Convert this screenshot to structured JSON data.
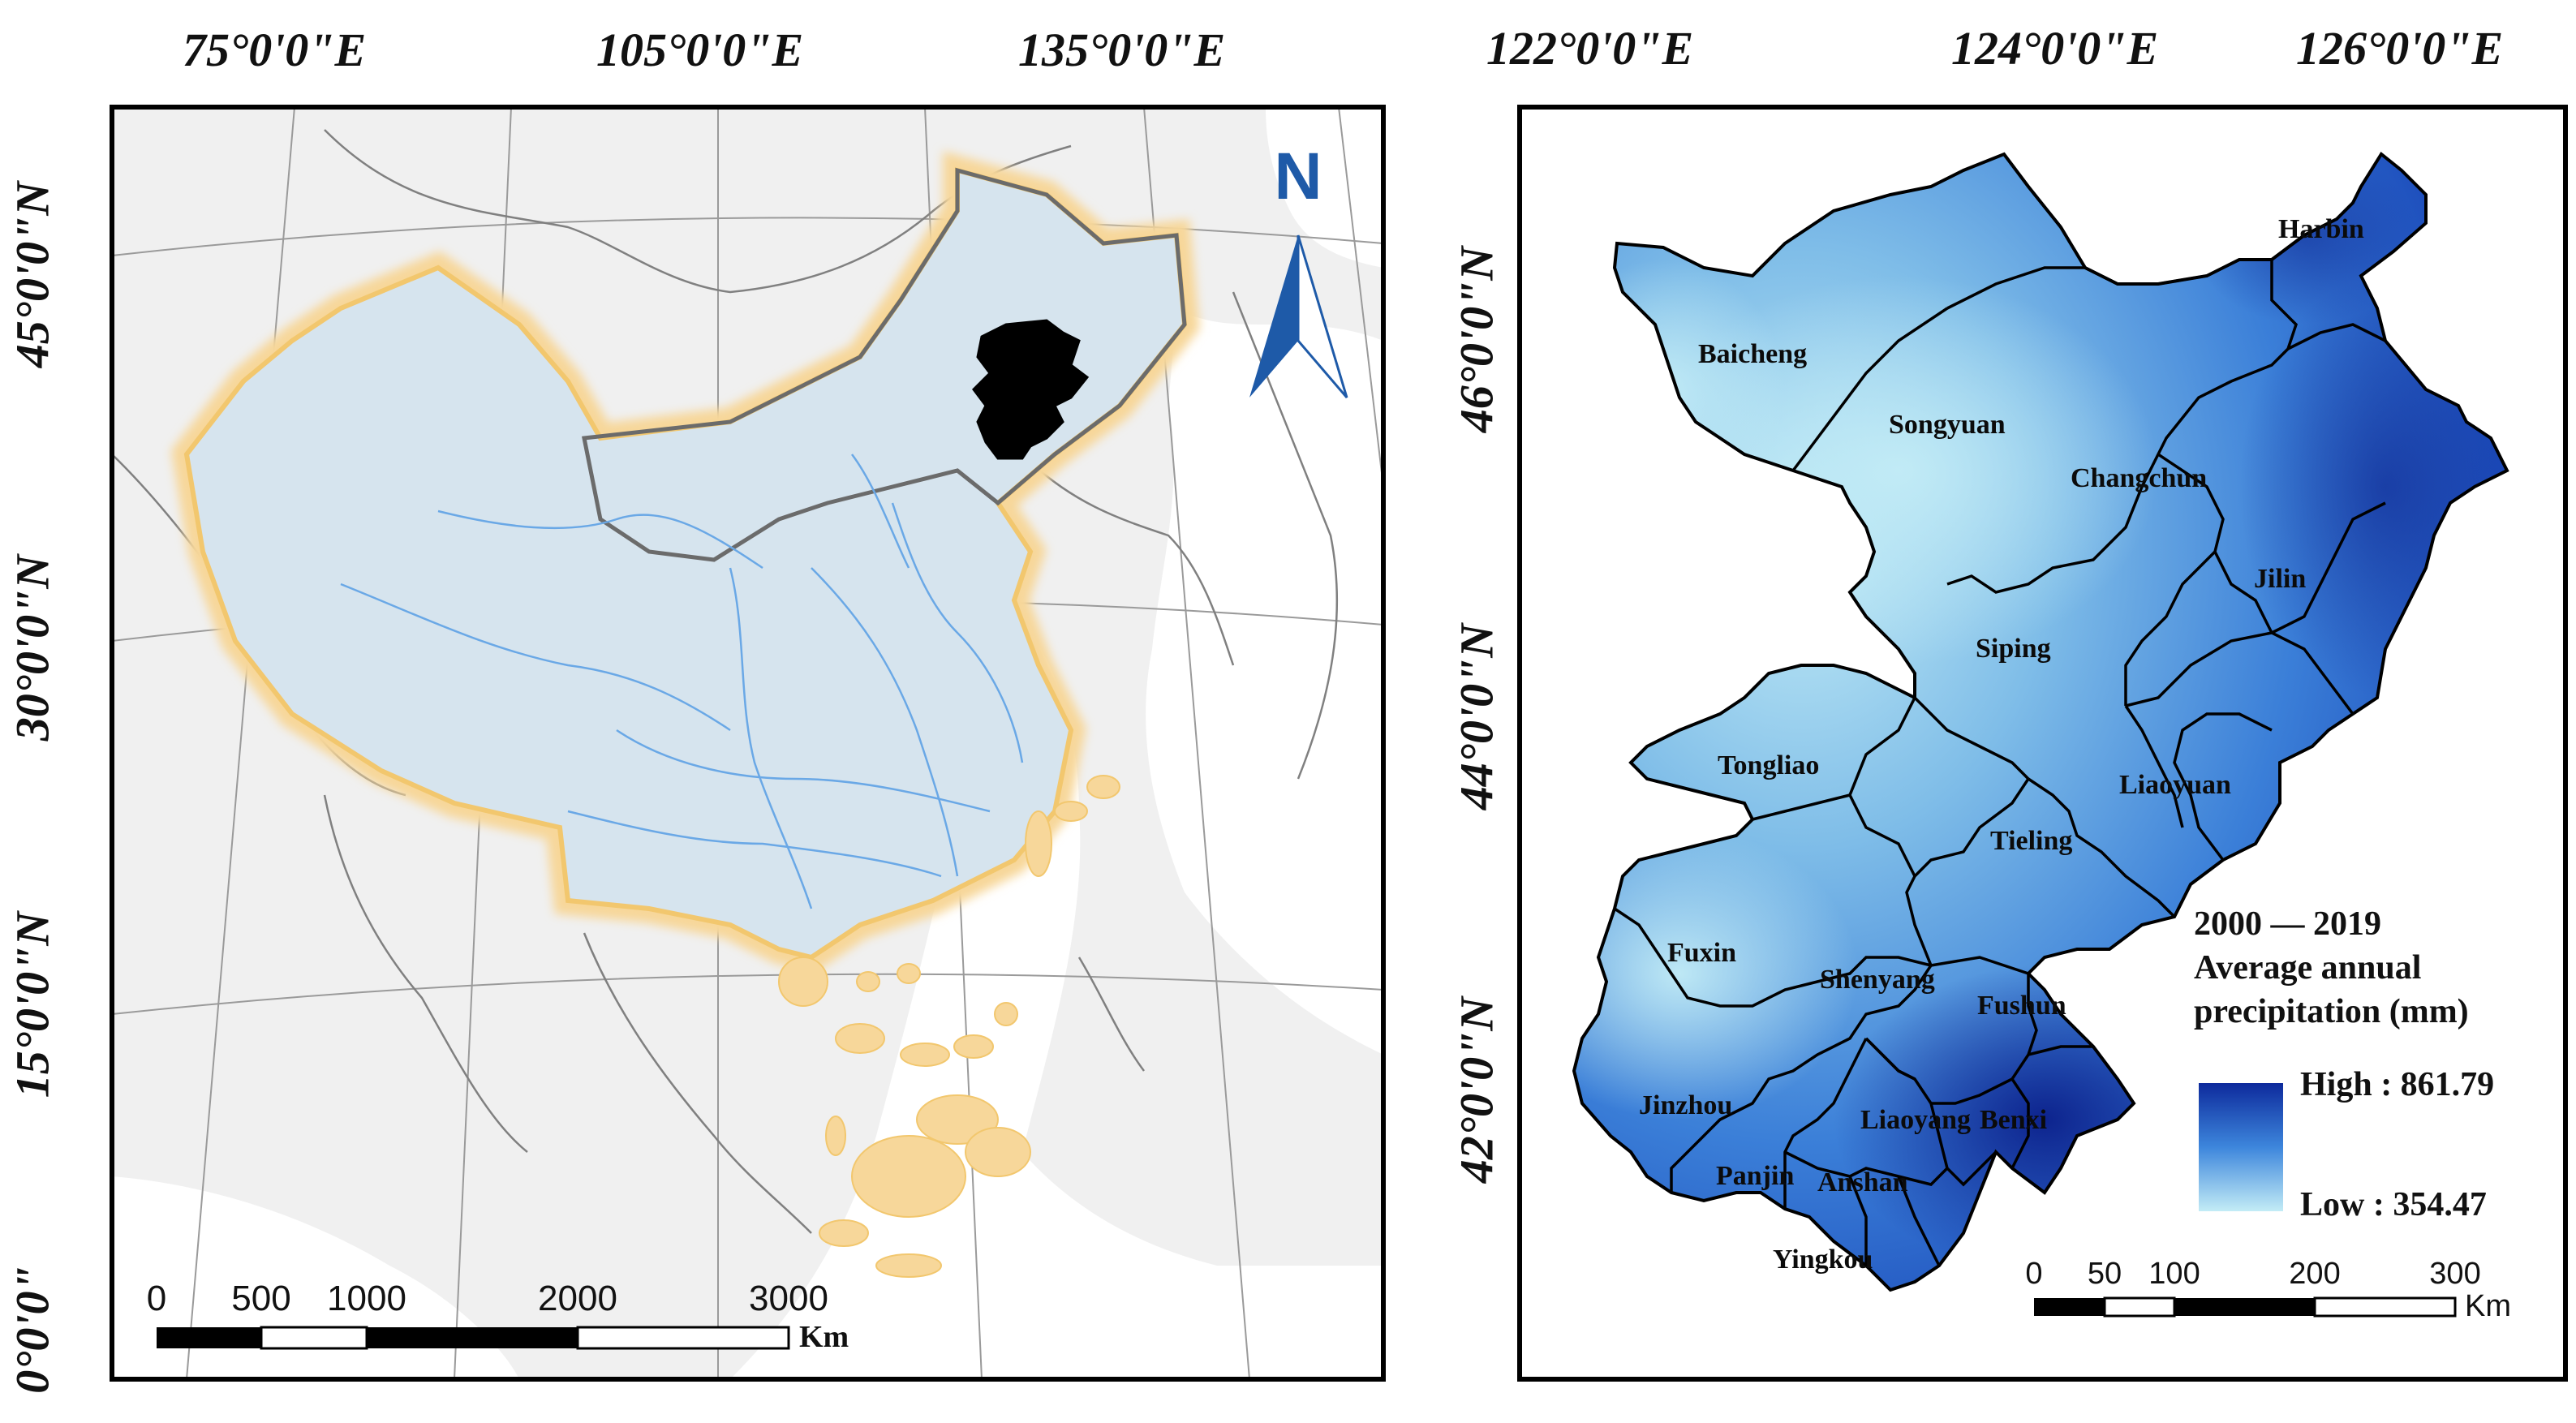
{
  "left_map": {
    "top_labels": [
      "75°0'0\"E",
      "105°0'0\"E",
      "135°0'0\"E"
    ],
    "side_labels": [
      "45°0'0\"N",
      "30°0'0\"N",
      "15°0'0\"N",
      "0°0'0\""
    ],
    "north_arrow": "N",
    "scale": {
      "ticks": [
        "0",
        "500",
        "1000",
        "2000",
        "3000"
      ],
      "unit": "Km"
    },
    "colors": {
      "background": "#f0f0f0",
      "country": "#d6e4ee",
      "highlight_border": "#f7d79a",
      "study_area": "#000000",
      "province_lines": "#6aa8e6"
    }
  },
  "right_map": {
    "top_labels": [
      "122°0'0\"E",
      "124°0'0\"E",
      "126°0'0\"E"
    ],
    "side_labels": [
      "46°0'0\"N",
      "44°0'0\"N",
      "42°0'0\"N"
    ],
    "cities": [
      "Harbin",
      "Baicheng",
      "Songyuan",
      "Changchun",
      "Jilin",
      "Siping",
      "Tongliao",
      "Liaoyuan",
      "Tieling",
      "Fuxin",
      "Shenyang",
      "Fushun",
      "Jinzhou",
      "Liaoyang",
      "Benxi",
      "Panjin",
      "Anshan",
      "Yingkou"
    ],
    "legend": {
      "title_lines": [
        "2000 — 2019",
        "Average annual",
        "precipitation (mm)"
      ],
      "high": "High : 861.79",
      "low": "Low : 354.47",
      "color_high": "#0d2a9c",
      "color_low": "#c3ecf6"
    },
    "scale": {
      "ticks": [
        "0",
        "50",
        "100",
        "200",
        "300"
      ],
      "unit": "Km"
    }
  }
}
